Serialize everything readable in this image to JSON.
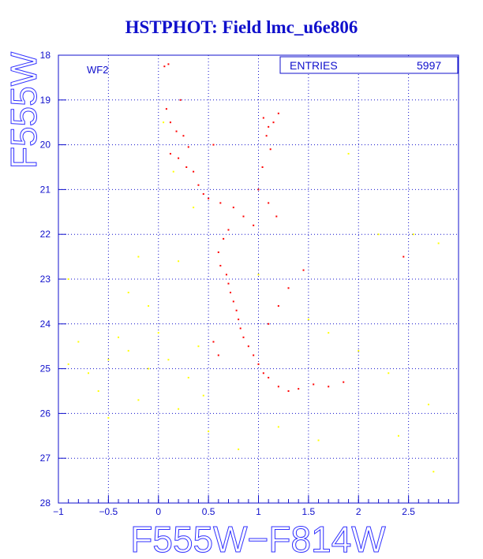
{
  "window": {
    "title": "HSTPHOT: Field lmc_u6e806"
  },
  "chart_data": {
    "type": "scatter",
    "title": "HSTPHOT: Field lmc_u6e806",
    "xlabel": "F555W−F814W",
    "ylabel": "F555W",
    "xlim": [
      -1,
      3
    ],
    "ylim": [
      28,
      18
    ],
    "y_inverted": true,
    "grid": true,
    "x_ticks": [
      -1,
      -0.5,
      0,
      0.5,
      1,
      1.5,
      2,
      2.5
    ],
    "x_tick_labels": [
      "−1",
      "−0.5",
      "0",
      "0.5",
      "1",
      "1.5",
      "2",
      "2.5"
    ],
    "y_ticks": [
      18,
      19,
      20,
      21,
      22,
      23,
      24,
      25,
      26,
      27,
      28
    ],
    "y_tick_labels": [
      "18",
      "19",
      "20",
      "21",
      "22",
      "23",
      "24",
      "25",
      "26",
      "27",
      "28"
    ],
    "panel_label": "WF2",
    "stats_box": {
      "label": "ENTRIES",
      "value": "5997"
    },
    "colors": {
      "frame": "#1010cc",
      "grid": "#1010cc",
      "red_points": "#ff0000",
      "yellow_points": "#ffff00"
    },
    "series": [
      {
        "color": "#ff0000",
        "points": [
          [
            0.06,
            18.25
          ],
          [
            0.1,
            18.2
          ],
          [
            0.22,
            19.0
          ],
          [
            0.08,
            19.2
          ],
          [
            0.12,
            19.5
          ],
          [
            0.18,
            19.7
          ],
          [
            0.25,
            19.8
          ],
          [
            0.3,
            20.05
          ],
          [
            0.2,
            20.3
          ],
          [
            0.28,
            20.5
          ],
          [
            0.35,
            20.6
          ],
          [
            0.12,
            20.2
          ],
          [
            0.4,
            20.9
          ],
          [
            0.45,
            21.1
          ],
          [
            0.5,
            21.2
          ],
          [
            0.55,
            20.0
          ],
          [
            0.62,
            21.3
          ],
          [
            1.05,
            19.4
          ],
          [
            1.1,
            19.6
          ],
          [
            1.15,
            19.5
          ],
          [
            1.08,
            19.8
          ],
          [
            1.12,
            20.1
          ],
          [
            1.2,
            19.3
          ],
          [
            1.04,
            20.5
          ],
          [
            1.0,
            21.0
          ],
          [
            1.1,
            21.3
          ],
          [
            1.18,
            21.6
          ],
          [
            0.95,
            21.8
          ],
          [
            0.85,
            21.6
          ],
          [
            0.75,
            21.4
          ],
          [
            0.7,
            21.9
          ],
          [
            0.65,
            22.1
          ],
          [
            0.6,
            22.4
          ],
          [
            0.62,
            22.7
          ],
          [
            0.68,
            22.9
          ],
          [
            0.7,
            23.1
          ],
          [
            0.72,
            23.3
          ],
          [
            0.75,
            23.5
          ],
          [
            0.78,
            23.7
          ],
          [
            0.8,
            23.9
          ],
          [
            0.82,
            24.1
          ],
          [
            0.85,
            24.3
          ],
          [
            0.9,
            24.5
          ],
          [
            0.95,
            24.7
          ],
          [
            1.0,
            24.9
          ],
          [
            1.05,
            25.1
          ],
          [
            1.1,
            25.2
          ],
          [
            1.2,
            25.4
          ],
          [
            1.3,
            25.5
          ],
          [
            1.4,
            25.45
          ],
          [
            1.55,
            25.35
          ],
          [
            1.7,
            25.4
          ],
          [
            1.85,
            25.3
          ],
          [
            2.45,
            22.5
          ],
          [
            1.45,
            22.8
          ],
          [
            1.3,
            23.2
          ],
          [
            1.2,
            23.6
          ],
          [
            1.1,
            24.0
          ],
          [
            0.55,
            24.4
          ],
          [
            0.6,
            24.7
          ]
        ]
      },
      {
        "color": "#ffff00",
        "points": [
          [
            -0.9,
            24.9
          ],
          [
            -0.7,
            25.1
          ],
          [
            -0.5,
            24.8
          ],
          [
            -0.3,
            24.6
          ],
          [
            -0.1,
            25.0
          ],
          [
            0.1,
            24.8
          ],
          [
            0.3,
            25.2
          ],
          [
            0.4,
            24.5
          ],
          [
            -0.6,
            25.5
          ],
          [
            -0.2,
            25.7
          ],
          [
            0.2,
            25.9
          ],
          [
            -0.8,
            24.4
          ],
          [
            -0.4,
            24.3
          ],
          [
            0.0,
            24.2
          ],
          [
            -0.3,
            23.3
          ],
          [
            -0.1,
            23.6
          ],
          [
            0.2,
            22.6
          ],
          [
            0.35,
            21.4
          ],
          [
            0.15,
            20.6
          ],
          [
            0.05,
            19.5
          ],
          [
            1.5,
            23.9
          ],
          [
            1.7,
            24.2
          ],
          [
            2.0,
            24.6
          ],
          [
            2.3,
            25.1
          ],
          [
            2.7,
            25.8
          ],
          [
            2.4,
            26.5
          ],
          [
            2.75,
            27.3
          ],
          [
            1.2,
            26.3
          ],
          [
            0.8,
            26.8
          ],
          [
            -0.5,
            26.1
          ],
          [
            -0.9,
            23.0
          ],
          [
            2.8,
            22.2
          ],
          [
            2.2,
            22.0
          ],
          [
            1.9,
            20.2
          ],
          [
            0.5,
            26.4
          ],
          [
            -0.2,
            22.5
          ],
          [
            1.0,
            22.9
          ],
          [
            2.55,
            22.0
          ],
          [
            1.6,
            26.6
          ],
          [
            0.45,
            25.6
          ]
        ]
      }
    ]
  }
}
